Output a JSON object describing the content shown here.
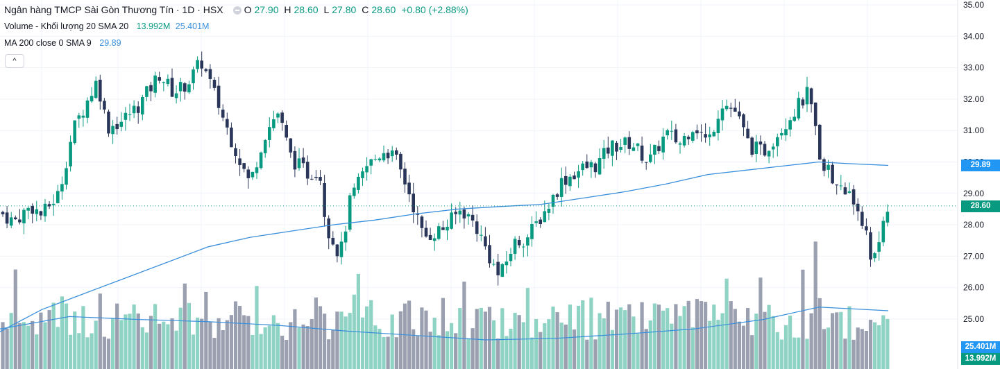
{
  "legend": {
    "title": "Ngân hàng TMCP Sài Gòn Thương Tín · 1D · HSX",
    "o_label": "O",
    "o_value": "27.90",
    "h_label": "H",
    "h_value": "28.60",
    "l_label": "L",
    "l_value": "27.80",
    "c_label": "C",
    "c_value": "28.60",
    "change": "+0.80 (+2.88%)",
    "volume_label": "Volume - Khối lượng 20 SMA 20",
    "volume_value": "13.992M",
    "volume_sma_value": "25.401M",
    "ma_label": "MA 200 close 0 SMA 9",
    "ma_value": "29.89",
    "collapse_icon": "chevron-up-icon"
  },
  "colors": {
    "up": "#089981",
    "down": "#2a3659",
    "ma": "#3a8fdc",
    "vol_up": "#8fd3c4",
    "vol_down": "#9aa0b0"
  },
  "price_labels": {
    "ma": "29.89",
    "last": "28.60",
    "vol_sma": "25.401M",
    "vol": "13.992M"
  },
  "chart_data": {
    "type": "candlestick",
    "yticks": [
      "35.00",
      "34.00",
      "33.00",
      "32.00",
      "31.00",
      "30.00",
      "29.00",
      "28.00",
      "27.00",
      "26.00",
      "25.00"
    ],
    "ylim": [
      24.4,
      35.15
    ],
    "last_price": 28.6,
    "ma200_points": [
      [
        0,
        24.6
      ],
      [
        60,
        25.3
      ],
      [
        120,
        25.8
      ],
      [
        180,
        26.3
      ],
      [
        240,
        26.8
      ],
      [
        300,
        27.3
      ],
      [
        360,
        27.6
      ],
      [
        420,
        27.8
      ],
      [
        480,
        28.0
      ],
      [
        540,
        28.15
      ],
      [
        600,
        28.35
      ],
      [
        660,
        28.5
      ],
      [
        720,
        28.58
      ],
      [
        780,
        28.65
      ],
      [
        840,
        28.85
      ],
      [
        900,
        29.05
      ],
      [
        960,
        29.3
      ],
      [
        1020,
        29.6
      ],
      [
        1080,
        29.75
      ],
      [
        1140,
        29.9
      ],
      [
        1180,
        30.0
      ],
      [
        1220,
        29.95
      ],
      [
        1280,
        29.89
      ]
    ],
    "volume_sma_points": [
      [
        0,
        25.15
      ],
      [
        100,
        25.32
      ],
      [
        200,
        25.28
      ],
      [
        300,
        25.25
      ],
      [
        400,
        25.2
      ],
      [
        500,
        25.12
      ],
      [
        600,
        25.06
      ],
      [
        700,
        25.0
      ],
      [
        800,
        25.02
      ],
      [
        900,
        25.08
      ],
      [
        1000,
        25.15
      ],
      [
        1100,
        25.28
      ],
      [
        1180,
        25.45
      ],
      [
        1240,
        25.42
      ],
      [
        1280,
        25.4
      ]
    ],
    "anchors": [
      [
        0,
        28.4
      ],
      [
        20,
        28.1
      ],
      [
        45,
        28.6
      ],
      [
        60,
        28.3
      ],
      [
        85,
        29.0
      ],
      [
        105,
        31.0
      ],
      [
        140,
        32.6
      ],
      [
        155,
        31.1
      ],
      [
        175,
        31.3
      ],
      [
        200,
        31.8
      ],
      [
        230,
        32.8
      ],
      [
        250,
        32.2
      ],
      [
        270,
        32.5
      ],
      [
        290,
        33.2
      ],
      [
        305,
        32.4
      ],
      [
        330,
        30.9
      ],
      [
        345,
        30.1
      ],
      [
        360,
        29.3
      ],
      [
        380,
        30.8
      ],
      [
        400,
        31.6
      ],
      [
        420,
        30.1
      ],
      [
        445,
        29.6
      ],
      [
        460,
        29.8
      ],
      [
        470,
        28.0
      ],
      [
        490,
        27.0
      ],
      [
        505,
        28.8
      ],
      [
        530,
        29.9
      ],
      [
        555,
        30.4
      ],
      [
        570,
        30.1
      ],
      [
        590,
        29.0
      ],
      [
        610,
        27.6
      ],
      [
        640,
        27.9
      ],
      [
        665,
        28.5
      ],
      [
        685,
        28.0
      ],
      [
        705,
        27.0
      ],
      [
        720,
        26.3
      ],
      [
        740,
        27.4
      ],
      [
        760,
        27.6
      ],
      [
        790,
        28.6
      ],
      [
        810,
        29.4
      ],
      [
        840,
        29.8
      ],
      [
        860,
        29.9
      ],
      [
        880,
        30.5
      ],
      [
        910,
        30.6
      ],
      [
        935,
        30.0
      ],
      [
        960,
        30.9
      ],
      [
        980,
        30.6
      ],
      [
        1000,
        31.2
      ],
      [
        1020,
        30.6
      ],
      [
        1040,
        31.9
      ],
      [
        1060,
        31.6
      ],
      [
        1080,
        30.5
      ],
      [
        1100,
        30.3
      ],
      [
        1120,
        30.9
      ],
      [
        1140,
        31.5
      ],
      [
        1165,
        32.2
      ],
      [
        1180,
        30.3
      ],
      [
        1200,
        29.4
      ],
      [
        1225,
        28.9
      ],
      [
        1240,
        28.4
      ],
      [
        1255,
        27.0
      ],
      [
        1265,
        27.4
      ],
      [
        1272,
        27.8
      ],
      [
        1280,
        28.6
      ]
    ]
  }
}
